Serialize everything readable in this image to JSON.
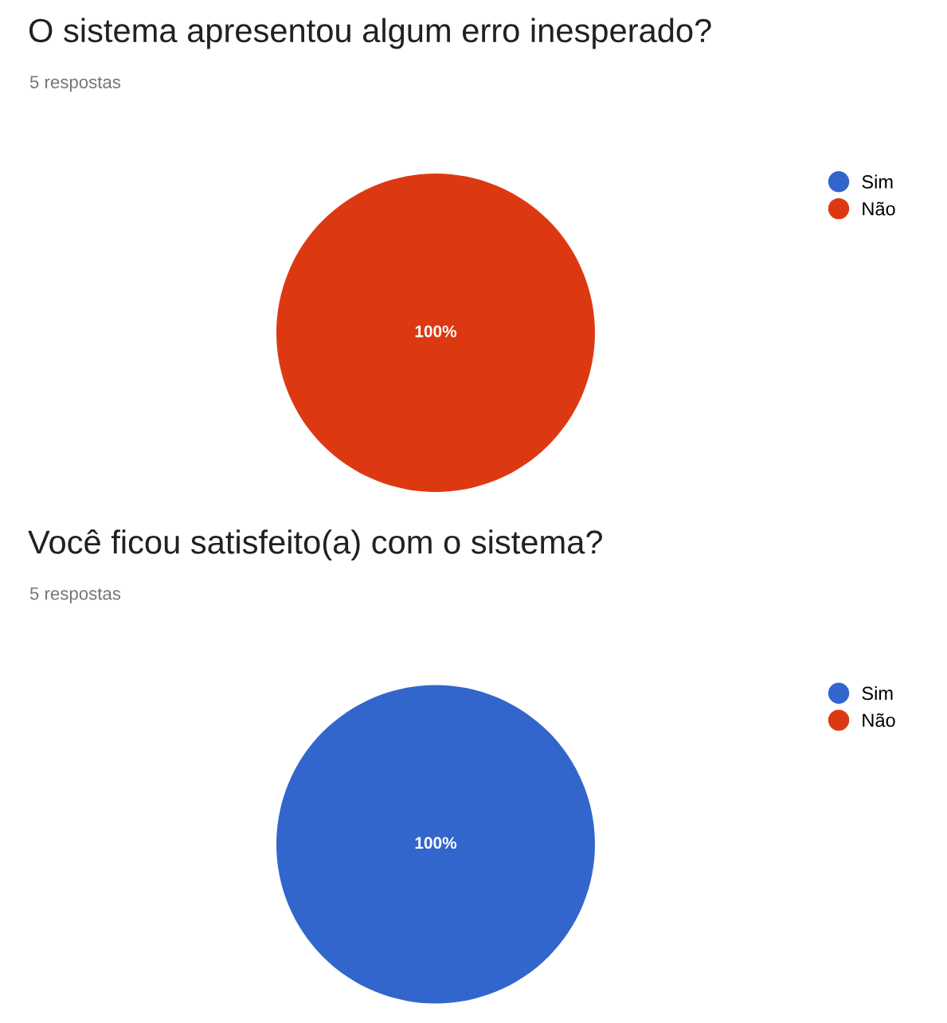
{
  "chart_data": [
    {
      "type": "pie",
      "title": "O sistema apresentou algum erro inesperado?",
      "subtitle": "5 respostas",
      "categories": [
        "Sim",
        "Não"
      ],
      "values": [
        0,
        100
      ],
      "colors": [
        "#3366cc",
        "#dc3912"
      ],
      "value_labels": [
        null,
        "100%"
      ],
      "legend": "right"
    },
    {
      "type": "pie",
      "title": "Você ficou satisfeito(a) com o sistema?",
      "subtitle": "5 respostas",
      "categories": [
        "Sim",
        "Não"
      ],
      "values": [
        100,
        0
      ],
      "colors": [
        "#3366cc",
        "#dc3912"
      ],
      "value_labels": [
        "100%",
        null
      ],
      "legend": "right"
    }
  ]
}
